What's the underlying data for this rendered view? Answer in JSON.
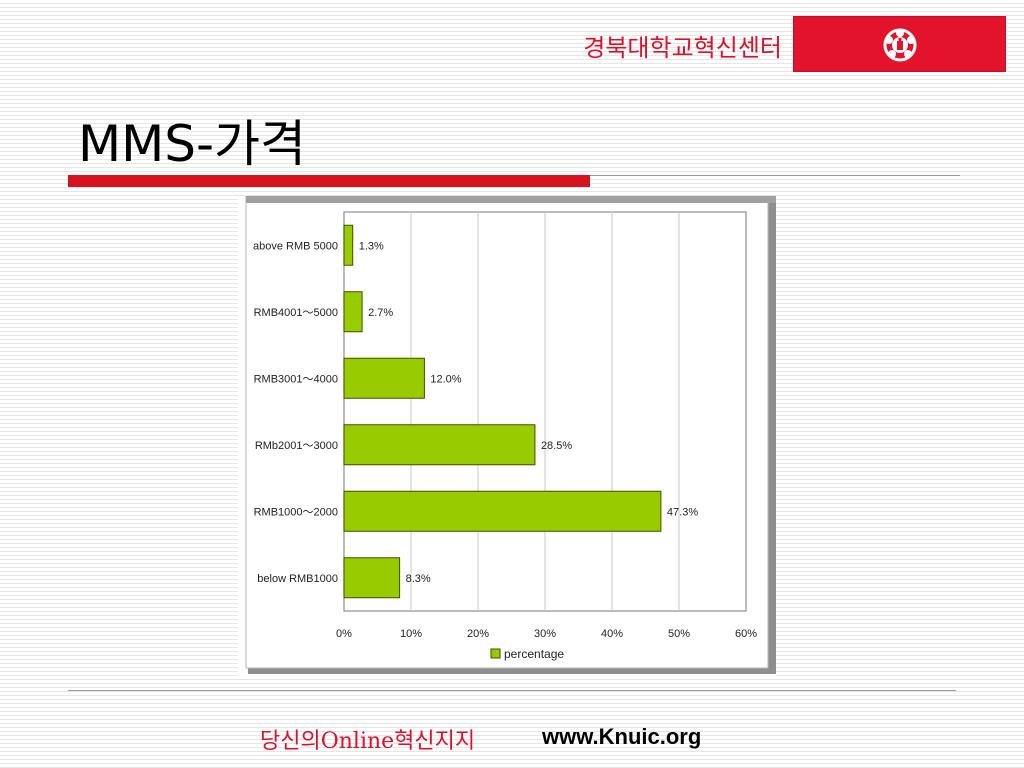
{
  "header": {
    "org_name": "경북대학교혁신센터",
    "logo_icon": "university-emblem-icon",
    "brand_color": "#e4132c"
  },
  "slide": {
    "title": "MMS-가격"
  },
  "footer": {
    "tagline": "당신의Online혁신지지",
    "url": "www.Knuic.org"
  },
  "chart_data": {
    "type": "bar",
    "orientation": "horizontal",
    "categories": [
      "above RMB 5000",
      "RMB4001～5000",
      "RMB3001～4000",
      "RMb2001～3000",
      "RMB1000～2000",
      "below RMB1000"
    ],
    "series": [
      {
        "name": "percentage",
        "values": [
          1.3,
          2.7,
          12.0,
          28.5,
          47.3,
          8.3
        ],
        "color": "#99cc00"
      }
    ],
    "data_labels": [
      "1.3%",
      "2.7%",
      "12.0%",
      "28.5%",
      "47.3%",
      "8.3%"
    ],
    "xlim": [
      0,
      60
    ],
    "x_ticks": [
      "0%",
      "10%",
      "20%",
      "30%",
      "40%",
      "50%",
      "60%"
    ],
    "grid": true,
    "legend": "bottom",
    "title": "",
    "xlabel": "",
    "ylabel": ""
  }
}
